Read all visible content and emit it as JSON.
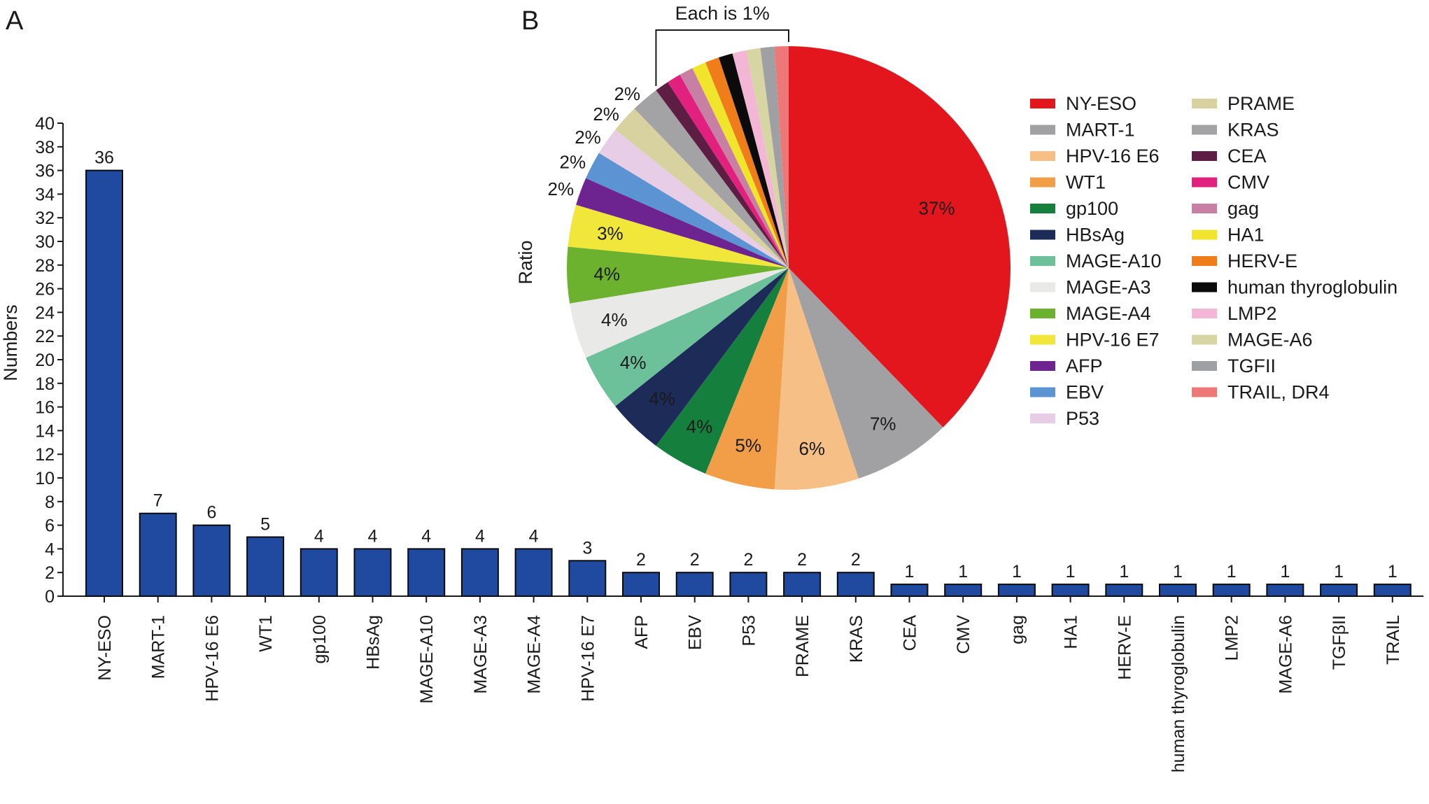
{
  "panel_labels": {
    "a": "A",
    "b": "B"
  },
  "chart_data": [
    {
      "type": "bar",
      "panel": "A",
      "ylabel": "Numbers",
      "xlabel": "",
      "ylim": [
        0,
        40
      ],
      "yticks": [
        0,
        2,
        4,
        6,
        8,
        10,
        12,
        14,
        16,
        18,
        20,
        22,
        24,
        26,
        28,
        30,
        32,
        34,
        36,
        38,
        40
      ],
      "bar_color": "#1f4aa0",
      "categories": [
        "NY-ESO",
        "MART-1",
        "HPV-16 E6",
        "WT1",
        "gp100",
        "HBsAg",
        "MAGE-A10",
        "MAGE-A3",
        "MAGE-A4",
        "HPV-16 E7",
        "AFP",
        "EBV",
        "P53",
        "PRAME",
        "KRAS",
        "CEA",
        "CMV",
        "gag",
        "HA1",
        "HERV-E",
        "human thyroglobulin",
        "LMP2",
        "MAGE-A6",
        "TGFβII",
        "TRAIL"
      ],
      "values": [
        36,
        7,
        6,
        5,
        4,
        4,
        4,
        4,
        4,
        3,
        2,
        2,
        2,
        2,
        2,
        1,
        1,
        1,
        1,
        1,
        1,
        1,
        1,
        1,
        1
      ]
    },
    {
      "type": "pie",
      "panel": "B",
      "ylabel": "Ratio",
      "bracket_label": "Each is 1%",
      "slices": [
        {
          "name": "NY-ESO",
          "value": 37,
          "label": "37%",
          "color": "#e3161d"
        },
        {
          "name": "MART-1",
          "value": 7,
          "label": "7%",
          "color": "#a1a1a4"
        },
        {
          "name": "HPV-16 E6",
          "value": 6,
          "label": "6%",
          "color": "#f6bf86"
        },
        {
          "name": "WT1",
          "value": 5,
          "label": "5%",
          "color": "#f29d48"
        },
        {
          "name": "gp100",
          "value": 4,
          "label": "4%",
          "color": "#15803d"
        },
        {
          "name": "HBsAg",
          "value": 4,
          "label": "4%",
          "color": "#1d2b58"
        },
        {
          "name": "MAGE-A10",
          "value": 4,
          "label": "4%",
          "color": "#6cc19b"
        },
        {
          "name": "MAGE-A3",
          "value": 4,
          "label": "4%",
          "color": "#e9e9e7"
        },
        {
          "name": "MAGE-A4",
          "value": 4,
          "label": "4%",
          "color": "#6cb22e"
        },
        {
          "name": "HPV-16 E7",
          "value": 3,
          "label": "3%",
          "color": "#f1e73a"
        },
        {
          "name": "AFP",
          "value": 2,
          "label": "2%",
          "color": "#6d2490"
        },
        {
          "name": "EBV",
          "value": 2,
          "label": "2%",
          "color": "#5b93d3"
        },
        {
          "name": "P53",
          "value": 2,
          "label": "2%",
          "color": "#e8cde6"
        },
        {
          "name": "PRAME",
          "value": 2,
          "label": "2%",
          "color": "#d7d29f"
        },
        {
          "name": "KRAS",
          "value": 2,
          "label": "2%",
          "color": "#a3a3a6"
        },
        {
          "name": "CEA",
          "value": 1,
          "label": "",
          "color": "#5e1d42"
        },
        {
          "name": "CMV",
          "value": 1,
          "label": "",
          "color": "#e2207e"
        },
        {
          "name": "gag",
          "value": 1,
          "label": "",
          "color": "#c77fa3"
        },
        {
          "name": "HA1",
          "value": 1,
          "label": "",
          "color": "#f0e52c"
        },
        {
          "name": "HERV-E",
          "value": 1,
          "label": "",
          "color": "#ee7d1a"
        },
        {
          "name": "human thyroglobulin",
          "value": 1,
          "label": "",
          "color": "#0b0b0b"
        },
        {
          "name": "LMP2",
          "value": 1,
          "label": "",
          "color": "#f3b6d5"
        },
        {
          "name": "MAGE-A6",
          "value": 1,
          "label": "",
          "color": "#d8d5a4"
        },
        {
          "name": "TGFII",
          "value": 1,
          "label": "",
          "color": "#9fa0a3"
        },
        {
          "name": "TRAIL, DR4",
          "value": 1,
          "label": "",
          "color": "#ee7777"
        }
      ]
    }
  ]
}
